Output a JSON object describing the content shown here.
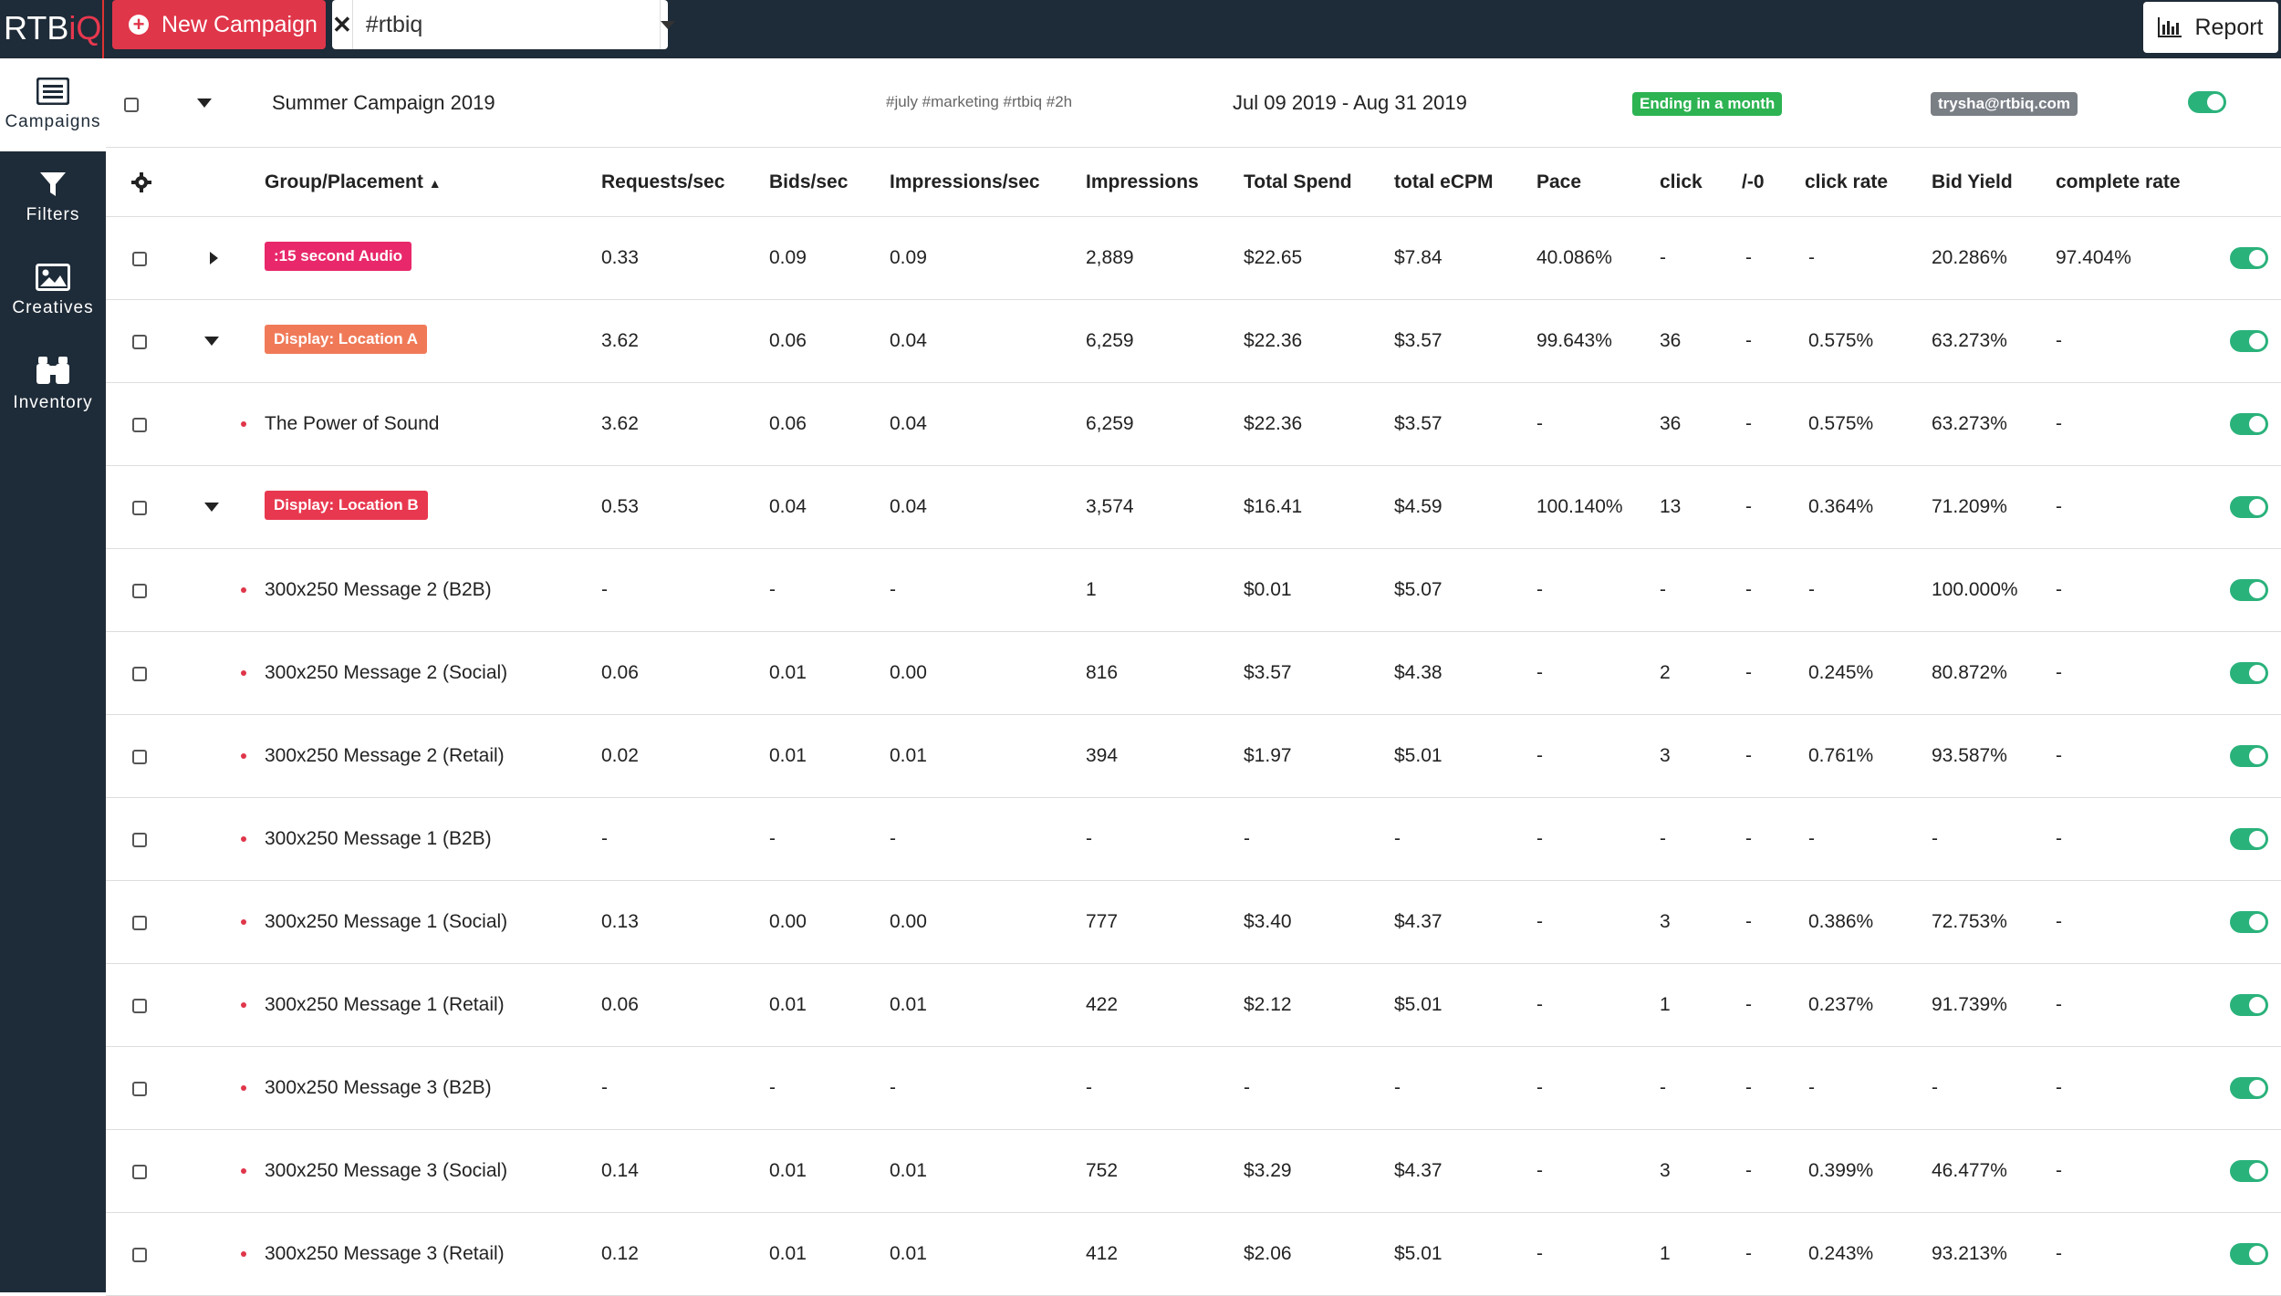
{
  "app": {
    "logo_main": "RTB",
    "logo_accent": "iQ",
    "new_campaign_label": "New Campaign",
    "search_value": "#rtbiq",
    "report_label": "Report"
  },
  "sidebar": {
    "items": [
      {
        "label": "Campaigns",
        "icon": "list-icon"
      },
      {
        "label": "Filters",
        "icon": "filter-icon"
      },
      {
        "label": "Creatives",
        "icon": "image-icon"
      },
      {
        "label": "Inventory",
        "icon": "binoculars-icon"
      }
    ]
  },
  "campaign": {
    "name": "Summer Campaign 2019",
    "tags": "#july #marketing #rtbiq #2h",
    "dates": "Jul 09 2019 - Aug 31 2019",
    "status": "Ending  in a month",
    "owner": "trysha@rtbiq.com"
  },
  "colors": {
    "topbar": "#1e2b38",
    "accent_red": "#e0364a",
    "toggle_green": "#2ab27b",
    "status_green": "#2db352",
    "owner_gray": "#7a7f86",
    "orange_pill": "#f07a58"
  },
  "table": {
    "columns": [
      "Group/Placement",
      "Requests/sec",
      "Bids/sec",
      "Impressions/sec",
      "Impressions",
      "Total Spend",
      "total eCPM",
      "Pace",
      "click",
      "/-0",
      "click rate",
      "Bid Yield",
      "complete rate"
    ],
    "sort_indicator": "▲",
    "rows": [
      {
        "kind": "group",
        "expander": "right",
        "pill_color": "#e8286a",
        "name": ":15 second Audio",
        "req": "0.33",
        "bids": "0.09",
        "imps_sec": "0.09",
        "imps": "2,889",
        "spend": "$22.65",
        "ecpm": "$7.84",
        "pace": "40.086%",
        "click": "-",
        "neg": "-",
        "click_rate": "-",
        "bid_yield": "20.286%",
        "complete": "97.404%"
      },
      {
        "kind": "group",
        "expander": "down",
        "pill_color": "#f07a58",
        "name": "Display: Location A",
        "req": "3.62",
        "bids": "0.06",
        "imps_sec": "0.04",
        "imps": "6,259",
        "spend": "$22.36",
        "ecpm": "$3.57",
        "pace": "99.643%",
        "click": "36",
        "neg": "-",
        "click_rate": "0.575%",
        "bid_yield": "63.273%",
        "complete": "-"
      },
      {
        "kind": "item",
        "name": "The Power of Sound",
        "req": "3.62",
        "bids": "0.06",
        "imps_sec": "0.04",
        "imps": "6,259",
        "spend": "$22.36",
        "ecpm": "$3.57",
        "pace": "-",
        "click": "36",
        "neg": "-",
        "click_rate": "0.575%",
        "bid_yield": "63.273%",
        "complete": "-"
      },
      {
        "kind": "group",
        "expander": "down",
        "pill_color": "#e8384f",
        "name": "Display: Location B",
        "req": "0.53",
        "bids": "0.04",
        "imps_sec": "0.04",
        "imps": "3,574",
        "spend": "$16.41",
        "ecpm": "$4.59",
        "pace": "100.140%",
        "click": "13",
        "neg": "-",
        "click_rate": "0.364%",
        "bid_yield": "71.209%",
        "complete": "-"
      },
      {
        "kind": "item",
        "name": "300x250 Message 2 (B2B)",
        "req": "-",
        "bids": "-",
        "imps_sec": "-",
        "imps": "1",
        "spend": "$0.01",
        "ecpm": "$5.07",
        "pace": "-",
        "click": "-",
        "neg": "-",
        "click_rate": "-",
        "bid_yield": "100.000%",
        "complete": "-"
      },
      {
        "kind": "item",
        "name": "300x250 Message 2 (Social)",
        "req": "0.06",
        "bids": "0.01",
        "imps_sec": "0.00",
        "imps": "816",
        "spend": "$3.57",
        "ecpm": "$4.38",
        "pace": "-",
        "click": "2",
        "neg": "-",
        "click_rate": "0.245%",
        "bid_yield": "80.872%",
        "complete": "-"
      },
      {
        "kind": "item",
        "name": "300x250 Message 2 (Retail)",
        "req": "0.02",
        "bids": "0.01",
        "imps_sec": "0.01",
        "imps": "394",
        "spend": "$1.97",
        "ecpm": "$5.01",
        "pace": "-",
        "click": "3",
        "neg": "-",
        "click_rate": "0.761%",
        "bid_yield": "93.587%",
        "complete": "-"
      },
      {
        "kind": "item",
        "name": "300x250 Message 1 (B2B)",
        "req": "-",
        "bids": "-",
        "imps_sec": "-",
        "imps": "-",
        "spend": "-",
        "ecpm": "-",
        "pace": "-",
        "click": "-",
        "neg": "-",
        "click_rate": "-",
        "bid_yield": "-",
        "complete": "-"
      },
      {
        "kind": "item",
        "name": "300x250 Message 1 (Social)",
        "req": "0.13",
        "bids": "0.00",
        "imps_sec": "0.00",
        "imps": "777",
        "spend": "$3.40",
        "ecpm": "$4.37",
        "pace": "-",
        "click": "3",
        "neg": "-",
        "click_rate": "0.386%",
        "bid_yield": "72.753%",
        "complete": "-"
      },
      {
        "kind": "item",
        "name": "300x250 Message 1 (Retail)",
        "req": "0.06",
        "bids": "0.01",
        "imps_sec": "0.01",
        "imps": "422",
        "spend": "$2.12",
        "ecpm": "$5.01",
        "pace": "-",
        "click": "1",
        "neg": "-",
        "click_rate": "0.237%",
        "bid_yield": "91.739%",
        "complete": "-"
      },
      {
        "kind": "item",
        "name": "300x250 Message 3 (B2B)",
        "req": "-",
        "bids": "-",
        "imps_sec": "-",
        "imps": "-",
        "spend": "-",
        "ecpm": "-",
        "pace": "-",
        "click": "-",
        "neg": "-",
        "click_rate": "-",
        "bid_yield": "-",
        "complete": "-"
      },
      {
        "kind": "item",
        "name": "300x250 Message 3 (Social)",
        "req": "0.14",
        "bids": "0.01",
        "imps_sec": "0.01",
        "imps": "752",
        "spend": "$3.29",
        "ecpm": "$4.37",
        "pace": "-",
        "click": "3",
        "neg": "-",
        "click_rate": "0.399%",
        "bid_yield": "46.477%",
        "complete": "-"
      },
      {
        "kind": "item",
        "name": "300x250 Message 3 (Retail)",
        "req": "0.12",
        "bids": "0.01",
        "imps_sec": "0.01",
        "imps": "412",
        "spend": "$2.06",
        "ecpm": "$5.01",
        "pace": "-",
        "click": "1",
        "neg": "-",
        "click_rate": "0.243%",
        "bid_yield": "93.213%",
        "complete": "-"
      }
    ]
  }
}
